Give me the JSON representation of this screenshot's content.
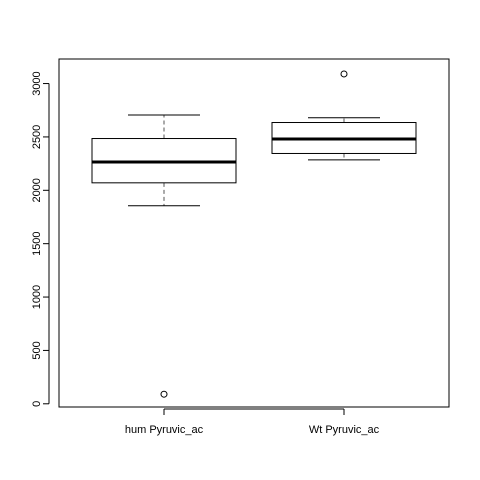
{
  "chart_data": {
    "type": "boxplot",
    "title": "",
    "xlabel": "",
    "ylabel": "",
    "ylim": [
      -30,
      3230
    ],
    "y_ticks": [
      0,
      500,
      1000,
      1500,
      2000,
      2500,
      3000
    ],
    "y_tick_labels": [
      "0",
      "500",
      "1000",
      "1500",
      "2000",
      "2500",
      "3000"
    ],
    "categories": [
      "hum Pyruvic_ac",
      "Wt Pyruvic_ac"
    ],
    "boxes": [
      {
        "category": "hum Pyruvic_ac",
        "whisker_low": 1855,
        "q1": 2070,
        "median": 2265,
        "q3": 2485,
        "whisker_high": 2705,
        "outliers": [
          90
        ]
      },
      {
        "category": "Wt Pyruvic_ac",
        "whisker_low": 2285,
        "q1": 2345,
        "median": 2480,
        "q3": 2635,
        "whisker_high": 2680,
        "outliers": [
          3090
        ]
      }
    ],
    "colors": {
      "box_fill": "#ffffff",
      "stroke": "#000000",
      "whisker": "#555555"
    }
  }
}
